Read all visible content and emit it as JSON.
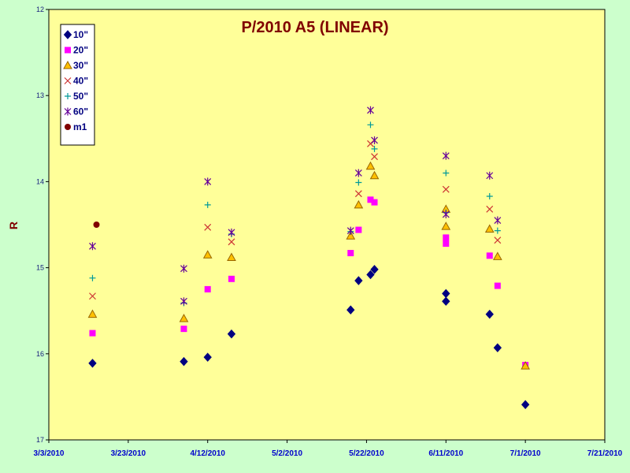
{
  "chart_data": {
    "type": "scatter",
    "title": "P/2010 A5 (LINEAR)",
    "xlabel": "",
    "ylabel": "R",
    "xlim": [
      "2010-03-03",
      "2010-07-21"
    ],
    "ylim": [
      12,
      17
    ],
    "y_inverted": true,
    "x_ticks": [
      "3/3/2010",
      "3/23/2010",
      "4/12/2010",
      "5/2/2010",
      "5/22/2010",
      "6/11/2010",
      "7/1/2010",
      "7/21/2010"
    ],
    "y_ticks": [
      "12",
      "13",
      "14",
      "15",
      "16",
      "17"
    ],
    "grid": false,
    "legend_position": "top-left",
    "plot_background": "#ffff99",
    "page_background": "#ccffcc",
    "series": [
      {
        "name": "10\"",
        "marker": "diamond",
        "color": "#000080",
        "points": [
          [
            "2010-03-14",
            16.11
          ],
          [
            "2010-04-06",
            16.09
          ],
          [
            "2010-04-12",
            16.04
          ],
          [
            "2010-04-18",
            15.77
          ],
          [
            "2010-05-18",
            15.49
          ],
          [
            "2010-05-20",
            15.15
          ],
          [
            "2010-05-23",
            15.08
          ],
          [
            "2010-05-24",
            15.02
          ],
          [
            "2010-06-11",
            15.3
          ],
          [
            "2010-06-11",
            15.39
          ],
          [
            "2010-06-22",
            15.54
          ],
          [
            "2010-06-24",
            15.93
          ],
          [
            "2010-07-01",
            16.59
          ]
        ]
      },
      {
        "name": "20\"",
        "marker": "square",
        "color": "#ff00ff",
        "points": [
          [
            "2010-03-14",
            15.76
          ],
          [
            "2010-04-06",
            15.71
          ],
          [
            "2010-04-12",
            15.25
          ],
          [
            "2010-04-18",
            15.13
          ],
          [
            "2010-05-18",
            14.83
          ],
          [
            "2010-05-20",
            14.56
          ],
          [
            "2010-05-23",
            14.21
          ],
          [
            "2010-05-24",
            14.24
          ],
          [
            "2010-06-11",
            14.65
          ],
          [
            "2010-06-11",
            14.72
          ],
          [
            "2010-06-22",
            14.86
          ],
          [
            "2010-06-24",
            15.21
          ],
          [
            "2010-07-01",
            16.13
          ]
        ]
      },
      {
        "name": "30\"",
        "marker": "triangle",
        "color": "#ffc000",
        "stroke": "#996600",
        "points": [
          [
            "2010-03-14",
            15.54
          ],
          [
            "2010-04-06",
            15.59
          ],
          [
            "2010-04-12",
            14.85
          ],
          [
            "2010-04-18",
            14.88
          ],
          [
            "2010-05-18",
            14.63
          ],
          [
            "2010-05-20",
            14.27
          ],
          [
            "2010-05-23",
            13.82
          ],
          [
            "2010-05-24",
            13.93
          ],
          [
            "2010-06-11",
            14.32
          ],
          [
            "2010-06-11",
            14.52
          ],
          [
            "2010-06-22",
            14.55
          ],
          [
            "2010-06-24",
            14.87
          ],
          [
            "2010-07-01",
            16.14
          ]
        ]
      },
      {
        "name": "40\"",
        "marker": "x",
        "color": "#cc3333",
        "points": [
          [
            "2010-03-14",
            15.33
          ],
          [
            "2010-04-12",
            14.53
          ],
          [
            "2010-04-18",
            14.7
          ],
          [
            "2010-05-20",
            14.14
          ],
          [
            "2010-05-23",
            13.56
          ],
          [
            "2010-05-24",
            13.71
          ],
          [
            "2010-06-11",
            14.09
          ],
          [
            "2010-06-22",
            14.32
          ],
          [
            "2010-06-24",
            14.68
          ]
        ]
      },
      {
        "name": "50\"",
        "marker": "plus",
        "color": "#009999",
        "points": [
          [
            "2010-03-14",
            15.12
          ],
          [
            "2010-04-06",
            15.41
          ],
          [
            "2010-04-12",
            14.27
          ],
          [
            "2010-04-18",
            14.61
          ],
          [
            "2010-05-18",
            14.58
          ],
          [
            "2010-05-20",
            14.01
          ],
          [
            "2010-05-23",
            13.34
          ],
          [
            "2010-05-24",
            13.62
          ],
          [
            "2010-06-11",
            13.9
          ],
          [
            "2010-06-11",
            14.36
          ],
          [
            "2010-06-22",
            14.17
          ],
          [
            "2010-06-24",
            14.57
          ]
        ]
      },
      {
        "name": "60\"",
        "marker": "asterisk",
        "color": "#660099",
        "points": [
          [
            "2010-03-14",
            14.75
          ],
          [
            "2010-04-06",
            15.01
          ],
          [
            "2010-04-06",
            15.39
          ],
          [
            "2010-04-12",
            14.0
          ],
          [
            "2010-04-18",
            14.59
          ],
          [
            "2010-05-18",
            14.57
          ],
          [
            "2010-05-20",
            13.9
          ],
          [
            "2010-05-23",
            13.17
          ],
          [
            "2010-05-24",
            13.52
          ],
          [
            "2010-06-11",
            13.7
          ],
          [
            "2010-06-11",
            14.38
          ],
          [
            "2010-06-22",
            13.93
          ],
          [
            "2010-06-24",
            14.45
          ]
        ]
      },
      {
        "name": "m1",
        "marker": "circle",
        "color": "#800000",
        "points": [
          [
            "2010-03-15",
            14.5
          ]
        ]
      }
    ]
  }
}
